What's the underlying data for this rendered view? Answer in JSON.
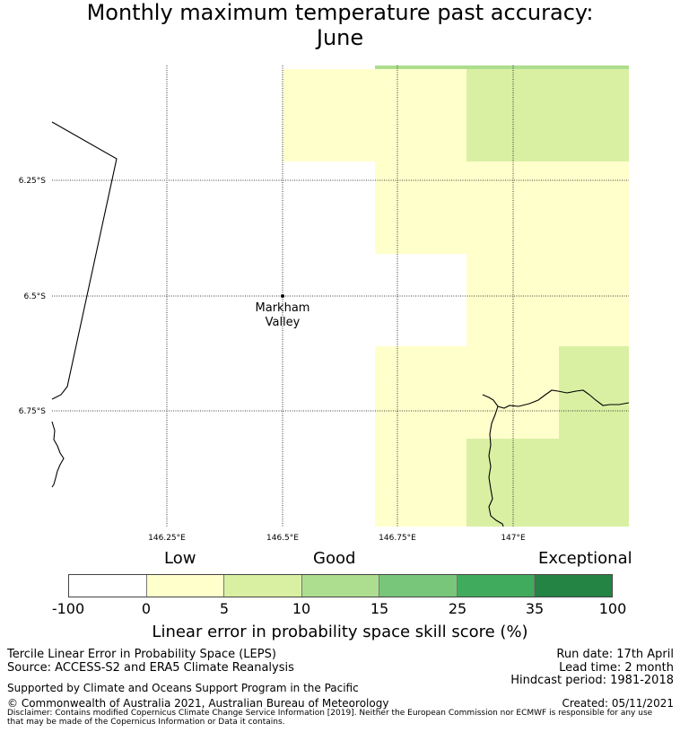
{
  "title": {
    "line1": "Monthly maximum temperature past accuracy:",
    "line2": "June"
  },
  "map": {
    "lon_ticks": [
      "146.25°E",
      "146.5°E",
      "146.75°E",
      "147°E"
    ],
    "lat_ticks": [
      "6.25°S",
      "6.5°S",
      "6.75°S"
    ],
    "place": {
      "name_line1": "Markham",
      "name_line2": "Valley"
    }
  },
  "colorbar": {
    "category_labels": [
      "Low",
      "Good",
      "Exceptional"
    ],
    "ticks": [
      "-100",
      "0",
      "5",
      "10",
      "15",
      "25",
      "35",
      "100"
    ],
    "colors": [
      "#ffffff",
      "#ffffcc",
      "#d9f0a3",
      "#addd8e",
      "#78c679",
      "#41ab5d",
      "#238443"
    ],
    "title": "Linear error in probability space skill score (%)"
  },
  "footer": {
    "left_line1": "Tercile Linear Error in Probability Space (LEPS)",
    "left_line2": "Source: ACCESS-S2 and ERA5 Climate Reanalysis",
    "right_line1": "Run date: 17th April",
    "right_line2": "Lead time: 2 month",
    "right_line3": "Hindcast period: 1981-2018",
    "support": "Supported by Climate and Oceans Support Program in the Pacific",
    "copyright": "© Commonwealth of Australia 2021, Australian Bureau of Meteorology",
    "created": "Created: 05/11/2021",
    "disclaimer_line1": "Disclaimer: Contains modified Copernicus Climate Change Service Information [2019]. Neither the European Commission nor ECMWF is responsible for any use",
    "disclaimer_line2": "that may be made of the Copernicus Information or Data it contains."
  }
}
